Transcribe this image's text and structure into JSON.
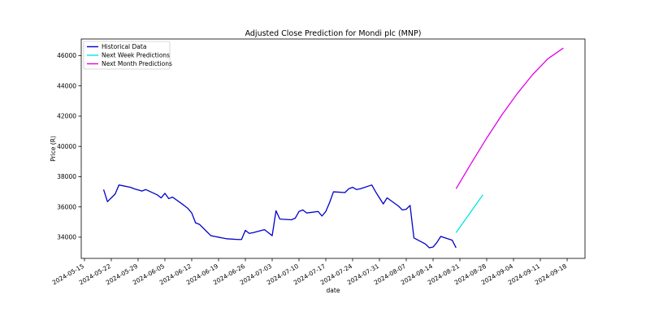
{
  "chart_data": {
    "type": "line",
    "title": "Adjusted Close Prediction for Mondi plc (MNP)",
    "xlabel": "date",
    "ylabel": "Price (R)",
    "ylim": [
      32600,
      47100
    ],
    "xlim": [
      "2024-05-15",
      "2024-09-18"
    ],
    "grid": false,
    "legend_position": "top-left",
    "x_ticks": [
      "2024-05-15",
      "2024-05-22",
      "2024-05-29",
      "2024-06-05",
      "2024-06-12",
      "2024-06-19",
      "2024-06-26",
      "2024-07-03",
      "2024-07-10",
      "2024-07-17",
      "2024-07-24",
      "2024-07-31",
      "2024-08-07",
      "2024-08-14",
      "2024-08-21",
      "2024-08-28",
      "2024-09-04",
      "2024-09-11",
      "2024-09-18"
    ],
    "y_ticks": [
      34000,
      36000,
      38000,
      40000,
      42000,
      44000,
      46000
    ],
    "series": [
      {
        "name": "Historical Data",
        "color": "#0000cc",
        "x": [
          "2024-05-20",
          "2024-05-21",
          "2024-05-23",
          "2024-05-24",
          "2024-05-27",
          "2024-05-28",
          "2024-05-30",
          "2024-05-31",
          "2024-06-03",
          "2024-06-04",
          "2024-06-05",
          "2024-06-06",
          "2024-06-07",
          "2024-06-10",
          "2024-06-11",
          "2024-06-12",
          "2024-06-13",
          "2024-06-14",
          "2024-06-17",
          "2024-06-18",
          "2024-06-19",
          "2024-06-20",
          "2024-06-21",
          "2024-06-24",
          "2024-06-25",
          "2024-06-26",
          "2024-06-27",
          "2024-06-28",
          "2024-07-01",
          "2024-07-02",
          "2024-07-03",
          "2024-07-04",
          "2024-07-05",
          "2024-07-08",
          "2024-07-09",
          "2024-07-10",
          "2024-07-11",
          "2024-07-12",
          "2024-07-15",
          "2024-07-16",
          "2024-07-17",
          "2024-07-18",
          "2024-07-19",
          "2024-07-22",
          "2024-07-23",
          "2024-07-24",
          "2024-07-25",
          "2024-07-26",
          "2024-07-29",
          "2024-07-30",
          "2024-07-31",
          "2024-08-01",
          "2024-08-02",
          "2024-08-05",
          "2024-08-06",
          "2024-08-07",
          "2024-08-08",
          "2024-08-09",
          "2024-08-12",
          "2024-08-13",
          "2024-08-14",
          "2024-08-15",
          "2024-08-16",
          "2024-08-19",
          "2024-08-20"
        ],
        "values": [
          37150,
          36350,
          36850,
          37450,
          37300,
          37200,
          37050,
          37150,
          36800,
          36600,
          36900,
          36550,
          36650,
          36100,
          35900,
          35600,
          34950,
          34850,
          34100,
          34050,
          34000,
          33950,
          33900,
          33850,
          33850,
          34450,
          34250,
          34300,
          34500,
          34300,
          34100,
          35750,
          35200,
          35150,
          35250,
          35700,
          35800,
          35600,
          35700,
          35400,
          35700,
          36300,
          37000,
          36950,
          37200,
          37300,
          37150,
          37200,
          37450,
          37000,
          36600,
          36200,
          36600,
          36050,
          35800,
          35850,
          36100,
          33950,
          33550,
          33300,
          33350,
          33650,
          34050,
          33800,
          33300
        ]
      },
      {
        "name": "Next Week Predictions",
        "color": "#00e5e5",
        "x": [
          "2024-08-20",
          "2024-08-27"
        ],
        "values": [
          34300,
          36800
        ]
      },
      {
        "name": "Next Month Predictions",
        "color": "#e500e5",
        "x": [
          "2024-08-20",
          "2024-08-24",
          "2024-08-28",
          "2024-09-01",
          "2024-09-05",
          "2024-09-09",
          "2024-09-13",
          "2024-09-17"
        ],
        "values": [
          37200,
          38900,
          40550,
          42100,
          43500,
          44750,
          45800,
          46500
        ]
      }
    ]
  }
}
